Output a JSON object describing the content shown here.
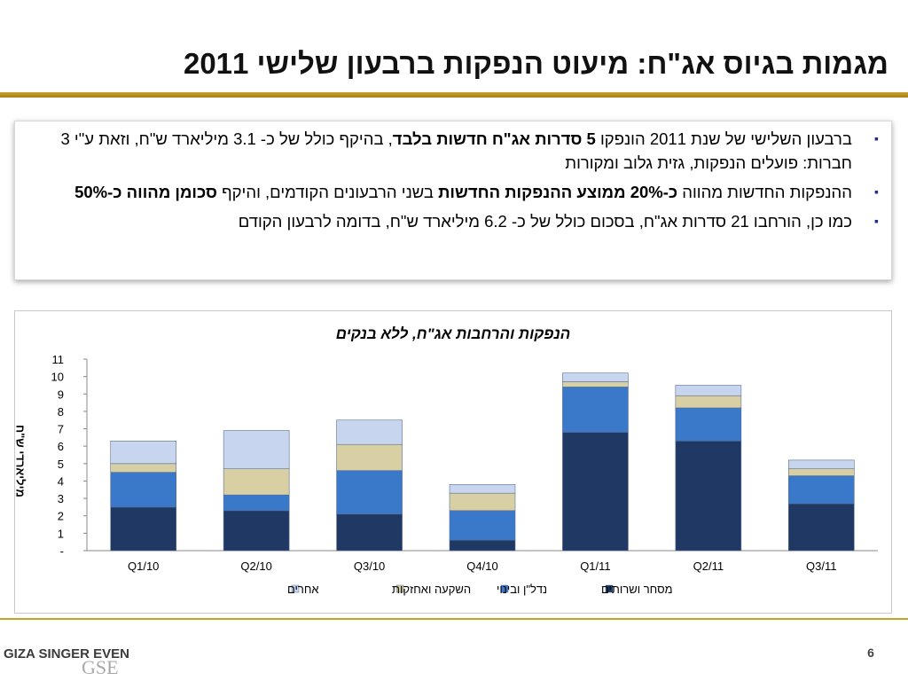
{
  "title": "מגמות בגיוס אג\"ח: מיעוט הנפקות ברבעון שלישי 2011",
  "bullets": [
    {
      "parts": [
        {
          "text": "ברבעון השלישי של שנת 2011 הונפקו ",
          "bold": false
        },
        {
          "text": "5 סדרות אג\"ח חדשות בלבד",
          "bold": true
        },
        {
          "text": ", בהיקף כולל של כ- 3.1 מיליארד ש\"ח, וזאת ע\"י 3 חברות: פועלים הנפקות, גזית גלוב ומקורות",
          "bold": false
        }
      ]
    },
    {
      "parts": [
        {
          "text": "ההנפקות החדשות מהווה ",
          "bold": false
        },
        {
          "text": "כ-20% ממוצע ההנפקות החדשות",
          "bold": true
        },
        {
          "text": " בשני הרבעונים הקודמים, והיקף ",
          "bold": false
        },
        {
          "text": "סכומן מהווה כ-50%",
          "bold": true
        }
      ]
    },
    {
      "parts": [
        {
          "text": "כמו כן, הורחבו 21 סדרות אג\"ח, בסכום כולל של כ- 6.2 מיליארד ש\"ח, בדומה לרבעון הקודם",
          "bold": false
        }
      ]
    }
  ],
  "bullet_symbol": "▪",
  "page_number": "6",
  "logo": {
    "text": "GIZA SINGER EVEN",
    "monogram": "GSE"
  },
  "chart_data": {
    "type": "bar",
    "stacked": true,
    "title": "הנפקות והרחבות אג\"ח, ללא בנקים",
    "xlabel": "",
    "ylabel": "מיליארדי ש\"ח",
    "ylim": [
      0,
      11
    ],
    "yticks": [
      "-",
      "1",
      "2",
      "3",
      "4",
      "5",
      "6",
      "7",
      "8",
      "9",
      "10",
      "11"
    ],
    "categories": [
      "Q1/10",
      "Q2/10",
      "Q3/10",
      "Q4/10",
      "Q1/11",
      "Q2/11",
      "Q3/11"
    ],
    "series": [
      {
        "name": "מסחר ושרותים",
        "color": "#1f3864",
        "values": [
          2.5,
          2.3,
          2.1,
          0.6,
          6.8,
          6.3,
          2.7
        ]
      },
      {
        "name": "נדל\"ן ובינוי",
        "color": "#3a78c9",
        "values": [
          2.0,
          0.9,
          2.5,
          1.7,
          2.6,
          1.9,
          1.6
        ]
      },
      {
        "name": "השקעה ואחזקות",
        "color": "#d9cfa4",
        "values": [
          0.5,
          1.5,
          1.5,
          1.0,
          0.3,
          0.7,
          0.4
        ]
      },
      {
        "name": "אחרים",
        "color": "#c7d6ee",
        "values": [
          1.3,
          2.2,
          1.4,
          0.5,
          0.5,
          0.6,
          0.5
        ]
      }
    ],
    "grid": false,
    "legend": "bottom"
  }
}
